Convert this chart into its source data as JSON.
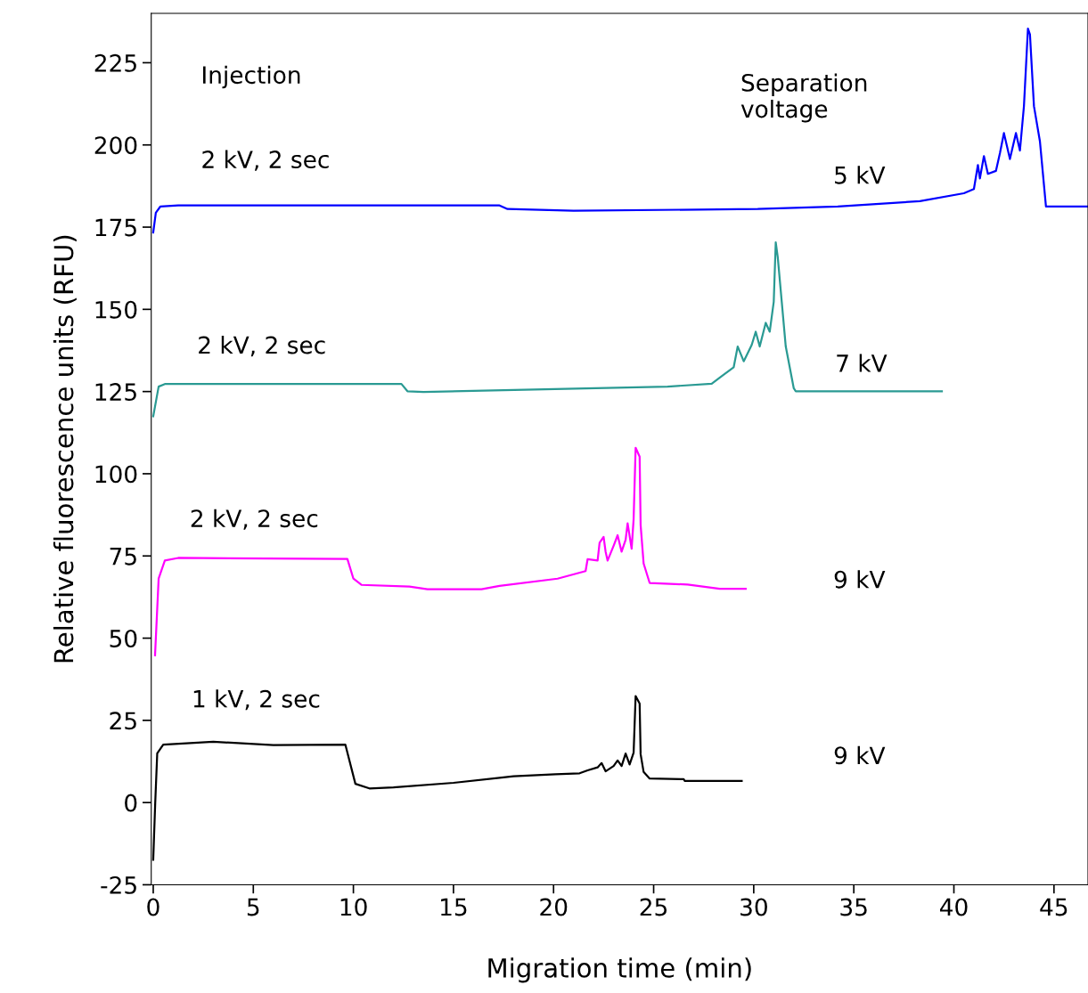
{
  "chart_data": {
    "type": "line",
    "xlabel": "Migration time (min)",
    "ylabel": "Relative fluorescence units (RFU)",
    "xlim": [
      -0.1,
      46.7
    ],
    "ylim": [
      -25,
      240
    ],
    "xticks": [
      0,
      5,
      10,
      15,
      20,
      25,
      30,
      35,
      40,
      45
    ],
    "yticks": [
      -25,
      0,
      25,
      50,
      75,
      100,
      125,
      150,
      175,
      200,
      225
    ],
    "grid": false,
    "legend": false,
    "marker": "none",
    "line_style": "solid",
    "series": [
      {
        "color": "#0000ff",
        "x": [
          0,
          0.13,
          0.36,
          1.25,
          17.3,
          17.7,
          21.0,
          30.2,
          34.2,
          38.3,
          40.5,
          41.0,
          41.2,
          41.3,
          41.5,
          41.7,
          42.1,
          42.3,
          42.5,
          42.8,
          43.1,
          43.3,
          43.5,
          43.7,
          43.8,
          44.0,
          44.3,
          44.6,
          46.7
        ],
        "values": [
          173.4,
          179.4,
          181.3,
          181.6,
          181.6,
          180.5,
          180.0,
          180.5,
          181.3,
          182.9,
          185.3,
          186.6,
          193.9,
          189.8,
          196.6,
          191.2,
          192.1,
          197.5,
          203.6,
          195.7,
          203.6,
          198.3,
          211.8,
          235.4,
          233.6,
          211.8,
          201,
          181.3,
          181.3
        ]
      },
      {
        "color": "#2a9a93",
        "x": [
          0,
          0.27,
          0.58,
          12.4,
          12.7,
          13.5,
          25.7,
          27.9,
          28.4,
          29.0,
          29.2,
          29.5,
          29.9,
          30.1,
          30.3,
          30.6,
          30.8,
          31.0,
          31.1,
          31.2,
          31.4,
          31.6,
          32.0,
          32.1,
          39.4
        ],
        "values": [
          117.5,
          126.5,
          127.3,
          127.3,
          125.1,
          124.9,
          126.5,
          127.4,
          129.7,
          132.4,
          138.7,
          134.2,
          139.2,
          143.2,
          138.7,
          145.9,
          143.2,
          152.3,
          170.4,
          165.9,
          152.3,
          138.7,
          126,
          125.1,
          125.1
        ]
      },
      {
        "color": "#ff00ff",
        "x": [
          0.09,
          0.27,
          0.58,
          1.25,
          9.7,
          10.0,
          10.4,
          12.8,
          13.7,
          16.4,
          17.3,
          20.2,
          21.6,
          21.7,
          22.2,
          22.3,
          22.5,
          22.6,
          22.7,
          23.0,
          23.2,
          23.4,
          23.6,
          23.7,
          23.9,
          24.0,
          24.1,
          24.3,
          24.35,
          24.5,
          24.8,
          26.7,
          28.3,
          29.6
        ],
        "values": [
          44.8,
          68.1,
          73.6,
          74.4,
          74.1,
          68.1,
          66.2,
          65.7,
          64.9,
          64.9,
          65.9,
          68.1,
          70.4,
          74.0,
          73.6,
          79.0,
          80.8,
          76.3,
          73.6,
          78.1,
          81.3,
          76.3,
          79.9,
          84.9,
          77.2,
          86.2,
          107.9,
          105.2,
          84.4,
          72.7,
          66.8,
          66.3,
          65.0,
          65.0
        ]
      },
      {
        "color": "#000000",
        "x": [
          0,
          0.1,
          0.2,
          0.5,
          3,
          6,
          9.6,
          10.1,
          10.8,
          12,
          15,
          17.3,
          18.0,
          20.1,
          21.3,
          21.7,
          22.2,
          22.4,
          22.6,
          23.0,
          23.2,
          23.4,
          23.6,
          23.8,
          24.0,
          24.1,
          24.3,
          24.35,
          24.5,
          24.8,
          26.5,
          26.55,
          29.4
        ],
        "values": [
          -17.4,
          0,
          15,
          17.6,
          18.5,
          17.5,
          17.6,
          5.7,
          4.3,
          4.6,
          6.0,
          7.5,
          8.0,
          8.6,
          8.9,
          9.8,
          10.7,
          12.0,
          9.5,
          11.1,
          12.8,
          11.1,
          14.9,
          11.6,
          15.2,
          32.4,
          30.1,
          14.7,
          9.3,
          7.3,
          7.1,
          6.6,
          6.6
        ]
      }
    ],
    "annotations": [
      "Injection",
      "Separation\nvoltage",
      "2 kV, 2 sec",
      "5 kV",
      "2 kV, 2 sec",
      "7 kV",
      "2 kV, 2 sec",
      "9 kV",
      "1 kV, 2 sec",
      "9 kV"
    ]
  }
}
